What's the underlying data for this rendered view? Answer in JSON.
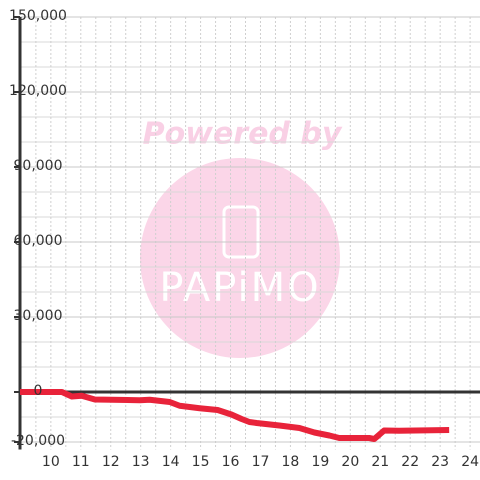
{
  "chart_data": {
    "type": "line",
    "watermark": [
      "Powered by",
      "PAPiMO"
    ],
    "x": [
      8.97,
      10.37,
      10.7,
      11.03,
      11.47,
      12.97,
      13.3,
      13.97,
      14.3,
      14.97,
      15.57,
      16.03,
      16.37,
      16.63,
      16.87,
      17.63,
      18.3,
      18.8,
      19.3,
      19.63,
      20.63,
      20.8,
      21.13,
      21.63,
      23.3
    ],
    "series": [
      {
        "color": "#e8233a",
        "values": [
          0,
          0,
          -1800,
          -1500,
          -3000,
          -3300,
          -3100,
          -4000,
          -5500,
          -6500,
          -7200,
          -9000,
          -10800,
          -12000,
          -12400,
          -13400,
          -14400,
          -16200,
          -17400,
          -18400,
          -18400,
          -18800,
          -15400,
          -15500,
          -15200
        ]
      }
    ],
    "xlim": [
      8.97,
      24.33
    ],
    "xticks": [
      10,
      11,
      12,
      13,
      14,
      15,
      16,
      17,
      18,
      19,
      20,
      21,
      22,
      23,
      24
    ],
    "x_minor_ticks": [
      9.5,
      10.5,
      11.5,
      12.5,
      13.5,
      14.5,
      15.5,
      16.5,
      17.5,
      18.5,
      19.5,
      20.5,
      21.5,
      22.5,
      23.5
    ],
    "ylim": [
      -23000,
      150000
    ],
    "yticks": [
      {
        "value": -20000,
        "label": "-20,000"
      },
      0,
      {
        "value": 30000,
        "label": "30,000"
      },
      {
        "value": 60000,
        "label": "60,000"
      },
      {
        "value": 90000,
        "label": "90,000"
      },
      {
        "value": 120000,
        "label": "120,000"
      },
      {
        "value": 150000,
        "label": "150,000"
      }
    ],
    "y_minor_ticks": [
      -10000,
      10000,
      20000,
      40000,
      50000,
      70000,
      80000,
      100000,
      110000,
      130000,
      140000
    ],
    "grid": true
  }
}
